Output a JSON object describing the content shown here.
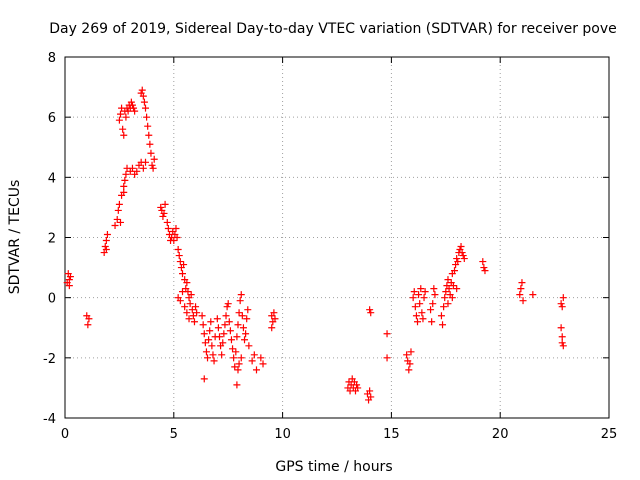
{
  "chart_data": {
    "type": "scatter",
    "title": "Day 269 of 2019, Sidereal Day-to-day VTEC variation (SDTVAR) for receiver pove",
    "xlabel": "GPS time / hours",
    "ylabel": "SDTVAR / TECUs",
    "xlim": [
      0,
      25
    ],
    "ylim": [
      -4,
      8
    ],
    "xticks": [
      0,
      5,
      10,
      15,
      20,
      25
    ],
    "yticks": [
      -4,
      -2,
      0,
      2,
      4,
      6,
      8
    ],
    "grid": true,
    "marker": "+",
    "color": "#ff0000",
    "series": [
      {
        "name": "SDTVAR",
        "points": [
          [
            0.1,
            0.5
          ],
          [
            0.15,
            0.8
          ],
          [
            0.2,
            0.6
          ],
          [
            0.25,
            0.7
          ],
          [
            0.2,
            0.4
          ],
          [
            1.0,
            -0.6
          ],
          [
            1.05,
            -0.9
          ],
          [
            1.1,
            -0.7
          ],
          [
            1.8,
            1.5
          ],
          [
            1.85,
            1.7
          ],
          [
            1.9,
            1.9
          ],
          [
            1.95,
            2.1
          ],
          [
            1.9,
            1.6
          ],
          [
            2.3,
            2.4
          ],
          [
            2.4,
            2.6
          ],
          [
            2.45,
            2.9
          ],
          [
            2.5,
            3.1
          ],
          [
            2.55,
            2.5
          ],
          [
            2.6,
            3.4
          ],
          [
            2.7,
            3.7
          ],
          [
            2.75,
            3.9
          ],
          [
            2.8,
            4.1
          ],
          [
            2.85,
            4.3
          ],
          [
            2.7,
            3.5
          ],
          [
            2.5,
            5.9
          ],
          [
            2.55,
            6.1
          ],
          [
            2.6,
            6.3
          ],
          [
            2.65,
            5.6
          ],
          [
            2.7,
            5.4
          ],
          [
            2.75,
            6.2
          ],
          [
            2.8,
            6.0
          ],
          [
            2.85,
            6.3
          ],
          [
            2.9,
            6.2
          ],
          [
            2.95,
            6.4
          ],
          [
            3.0,
            6.3
          ],
          [
            3.05,
            6.5
          ],
          [
            3.1,
            6.4
          ],
          [
            3.15,
            6.3
          ],
          [
            3.2,
            6.2
          ],
          [
            3.0,
            4.2
          ],
          [
            3.1,
            4.3
          ],
          [
            3.2,
            4.1
          ],
          [
            3.3,
            4.2
          ],
          [
            3.4,
            4.4
          ],
          [
            3.5,
            4.5
          ],
          [
            3.6,
            4.3
          ],
          [
            3.7,
            4.5
          ],
          [
            3.5,
            6.8
          ],
          [
            3.55,
            6.9
          ],
          [
            3.6,
            6.7
          ],
          [
            3.65,
            6.5
          ],
          [
            3.7,
            6.3
          ],
          [
            3.75,
            6.0
          ],
          [
            3.8,
            5.7
          ],
          [
            3.85,
            5.4
          ],
          [
            3.9,
            5.1
          ],
          [
            3.95,
            4.8
          ],
          [
            4.0,
            4.4
          ],
          [
            4.05,
            4.3
          ],
          [
            4.1,
            4.6
          ],
          [
            4.4,
            3.0
          ],
          [
            4.45,
            2.9
          ],
          [
            4.5,
            2.7
          ],
          [
            4.55,
            2.8
          ],
          [
            4.6,
            3.1
          ],
          [
            4.7,
            2.5
          ],
          [
            4.75,
            2.3
          ],
          [
            4.8,
            2.1
          ],
          [
            4.85,
            1.9
          ],
          [
            4.9,
            2.0
          ],
          [
            4.95,
            2.2
          ],
          [
            5.0,
            1.9
          ],
          [
            5.05,
            2.1
          ],
          [
            5.1,
            2.3
          ],
          [
            5.15,
            2.0
          ],
          [
            5.2,
            1.6
          ],
          [
            5.25,
            1.4
          ],
          [
            5.3,
            1.2
          ],
          [
            5.35,
            1.0
          ],
          [
            5.4,
            0.8
          ],
          [
            5.45,
            1.1
          ],
          [
            5.5,
            0.6
          ],
          [
            5.55,
            0.3
          ],
          [
            5.6,
            0.5
          ],
          [
            5.65,
            0.2
          ],
          [
            5.7,
            0.0
          ],
          [
            5.75,
            -0.2
          ],
          [
            5.8,
            0.1
          ],
          [
            5.85,
            -0.4
          ],
          [
            5.9,
            -0.6
          ],
          [
            5.95,
            -0.8
          ],
          [
            6.0,
            -0.3
          ],
          [
            6.05,
            -0.5
          ],
          [
            5.2,
            0.0
          ],
          [
            5.3,
            -0.1
          ],
          [
            5.4,
            0.2
          ],
          [
            5.5,
            -0.3
          ],
          [
            5.6,
            -0.5
          ],
          [
            5.7,
            -0.7
          ],
          [
            6.3,
            -0.6
          ],
          [
            6.35,
            -0.9
          ],
          [
            6.4,
            -1.2
          ],
          [
            6.45,
            -1.5
          ],
          [
            6.5,
            -1.8
          ],
          [
            6.55,
            -2.0
          ],
          [
            6.6,
            -1.4
          ],
          [
            6.65,
            -1.1
          ],
          [
            6.7,
            -0.8
          ],
          [
            6.75,
            -1.6
          ],
          [
            6.8,
            -1.9
          ],
          [
            6.85,
            -2.1
          ],
          [
            6.9,
            -1.3
          ],
          [
            7.0,
            -0.7
          ],
          [
            7.05,
            -1.0
          ],
          [
            7.1,
            -1.3
          ],
          [
            7.15,
            -1.6
          ],
          [
            7.2,
            -1.9
          ],
          [
            7.25,
            -1.5
          ],
          [
            7.3,
            -1.2
          ],
          [
            7.35,
            -0.9
          ],
          [
            7.4,
            -0.6
          ],
          [
            7.45,
            -0.3
          ],
          [
            7.5,
            -0.2
          ],
          [
            7.55,
            -0.8
          ],
          [
            7.6,
            -1.1
          ],
          [
            7.65,
            -1.4
          ],
          [
            7.7,
            -1.7
          ],
          [
            7.75,
            -2.0
          ],
          [
            7.8,
            -2.3
          ],
          [
            7.85,
            -1.8
          ],
          [
            7.9,
            -1.3
          ],
          [
            7.95,
            -0.9
          ],
          [
            8.0,
            -0.5
          ],
          [
            8.05,
            -0.1
          ],
          [
            8.1,
            0.1
          ],
          [
            8.15,
            -0.6
          ],
          [
            8.2,
            -1.0
          ],
          [
            8.25,
            -1.4
          ],
          [
            8.3,
            -1.2
          ],
          [
            8.35,
            -0.7
          ],
          [
            8.4,
            -0.4
          ],
          [
            8.45,
            -1.6
          ],
          [
            7.9,
            -2.9
          ],
          [
            7.95,
            -2.4
          ],
          [
            8.0,
            -2.2
          ],
          [
            8.1,
            -2.0
          ],
          [
            6.4,
            -2.7
          ],
          [
            8.6,
            -2.1
          ],
          [
            8.7,
            -1.9
          ],
          [
            8.8,
            -2.4
          ],
          [
            9.0,
            -2.0
          ],
          [
            9.1,
            -2.2
          ],
          [
            9.5,
            -0.6
          ],
          [
            9.55,
            -0.8
          ],
          [
            9.6,
            -0.5
          ],
          [
            9.65,
            -0.7
          ],
          [
            9.5,
            -1.0
          ],
          [
            13.0,
            -3.0
          ],
          [
            13.05,
            -2.8
          ],
          [
            13.1,
            -3.1
          ],
          [
            13.15,
            -2.9
          ],
          [
            13.2,
            -2.7
          ],
          [
            13.25,
            -3.0
          ],
          [
            13.3,
            -2.8
          ],
          [
            13.35,
            -3.1
          ],
          [
            13.4,
            -2.9
          ],
          [
            13.45,
            -3.0
          ],
          [
            13.9,
            -3.2
          ],
          [
            13.95,
            -3.4
          ],
          [
            14.0,
            -3.1
          ],
          [
            14.05,
            -3.3
          ],
          [
            14.0,
            -0.4
          ],
          [
            14.05,
            -0.5
          ],
          [
            14.8,
            -1.2
          ],
          [
            14.8,
            -2.0
          ],
          [
            15.7,
            -1.9
          ],
          [
            15.75,
            -2.1
          ],
          [
            15.8,
            -2.4
          ],
          [
            15.85,
            -2.2
          ],
          [
            15.9,
            -1.8
          ],
          [
            16.0,
            0.0
          ],
          [
            16.05,
            0.2
          ],
          [
            16.1,
            -0.3
          ],
          [
            16.15,
            -0.6
          ],
          [
            16.2,
            -0.8
          ],
          [
            16.25,
            0.1
          ],
          [
            16.3,
            -0.2
          ],
          [
            16.35,
            0.3
          ],
          [
            16.4,
            -0.5
          ],
          [
            16.45,
            -0.7
          ],
          [
            16.5,
            0.0
          ],
          [
            16.55,
            0.2
          ],
          [
            16.8,
            -0.4
          ],
          [
            16.85,
            -0.8
          ],
          [
            16.9,
            -0.2
          ],
          [
            16.95,
            0.3
          ],
          [
            17.0,
            0.1
          ],
          [
            17.3,
            -0.6
          ],
          [
            17.35,
            -0.9
          ],
          [
            17.4,
            -0.3
          ],
          [
            17.45,
            0.0
          ],
          [
            17.5,
            0.2
          ],
          [
            17.55,
            0.4
          ],
          [
            17.6,
            0.6
          ],
          [
            17.65,
            0.3
          ],
          [
            17.7,
            0.1
          ],
          [
            17.75,
            0.5
          ],
          [
            17.8,
            0.8
          ],
          [
            17.85,
            0.4
          ],
          [
            17.9,
            0.9
          ],
          [
            17.95,
            1.1
          ],
          [
            18.0,
            1.3
          ],
          [
            18.05,
            1.2
          ],
          [
            18.1,
            1.5
          ],
          [
            18.15,
            1.6
          ],
          [
            18.2,
            1.7
          ],
          [
            18.25,
            1.5
          ],
          [
            18.3,
            1.4
          ],
          [
            18.35,
            1.3
          ],
          [
            17.6,
            -0.2
          ],
          [
            17.8,
            0.0
          ],
          [
            18.0,
            0.3
          ],
          [
            19.2,
            1.2
          ],
          [
            19.25,
            1.0
          ],
          [
            19.3,
            0.9
          ],
          [
            20.9,
            0.1
          ],
          [
            20.95,
            0.3
          ],
          [
            21.0,
            0.5
          ],
          [
            21.05,
            -0.1
          ],
          [
            21.5,
            0.1
          ],
          [
            22.8,
            -0.2
          ],
          [
            22.85,
            -0.3
          ],
          [
            22.9,
            0.0
          ],
          [
            22.8,
            -1.0
          ],
          [
            22.85,
            -1.3
          ],
          [
            22.9,
            -1.6
          ],
          [
            22.85,
            -1.5
          ]
        ]
      }
    ]
  }
}
